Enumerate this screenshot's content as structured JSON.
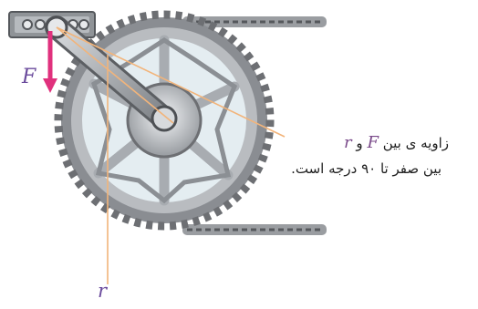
{
  "figure": {
    "force_symbol": "F",
    "radius_symbol": "r",
    "caption": {
      "line1_prefix": "زاویه ی بین",
      "line1_conj": "و",
      "line2": "بین صفر تا ۹۰ درجه است."
    },
    "colors": {
      "force_arrow": "#e0317d",
      "guide_lines": "#f2b47a",
      "metal_dark": "#6d6f73",
      "metal_light": "#cfd3d7",
      "chain": "#8c8f93"
    }
  }
}
